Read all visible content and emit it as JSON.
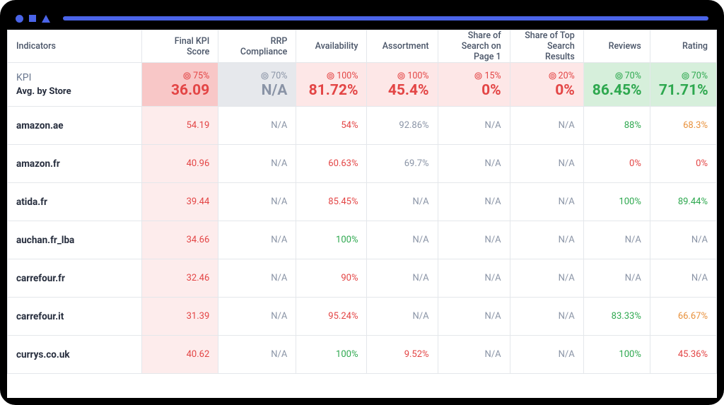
{
  "colors": {
    "red_bg_strong": "#f8c7c7",
    "red_bg_light": "#fde7e7",
    "grey_bg": "#e6e8ec",
    "green_bg": "#d6efdb",
    "text_red": "#e34545",
    "text_green": "#2ea84f",
    "text_grey": "#8a94a6",
    "text_orange": "#e8913c",
    "text_dark": "#262d3d",
    "border": "#e4e7eb",
    "accent_blue": "#4a64e8"
  },
  "columns": [
    {
      "key": "indicators",
      "label": "Indicators"
    },
    {
      "key": "final_kpi",
      "label": "Final KPI Score"
    },
    {
      "key": "rrp",
      "label": "RRP Compliance"
    },
    {
      "key": "availability",
      "label": "Availability"
    },
    {
      "key": "assortment",
      "label": "Assortment"
    },
    {
      "key": "sos",
      "label": "Share of Search on Page 1"
    },
    {
      "key": "sts",
      "label": "Share of Top Search Results"
    },
    {
      "key": "reviews",
      "label": "Reviews"
    },
    {
      "key": "rating",
      "label": "Rating"
    }
  ],
  "kpi_row": {
    "title": "KPI",
    "subtitle": "Avg. by Store",
    "cells": [
      {
        "target": "75%",
        "value": "36.09",
        "bg": "red_strong",
        "target_color": "red",
        "value_color": "red"
      },
      {
        "target": "70%",
        "value": "N/A",
        "bg": "grey",
        "target_color": "grey",
        "value_color": "grey"
      },
      {
        "target": "100%",
        "value": "81.72%",
        "bg": "red_light",
        "target_color": "red",
        "value_color": "red"
      },
      {
        "target": "100%",
        "value": "45.4%",
        "bg": "red_light",
        "target_color": "red",
        "value_color": "red"
      },
      {
        "target": "15%",
        "value": "0%",
        "bg": "red_light",
        "target_color": "red",
        "value_color": "red"
      },
      {
        "target": "20%",
        "value": "0%",
        "bg": "red_light",
        "target_color": "red",
        "value_color": "red"
      },
      {
        "target": "70%",
        "value": "86.45%",
        "bg": "green",
        "target_color": "green",
        "value_color": "green"
      },
      {
        "target": "70%",
        "value": "71.71%",
        "bg": "green",
        "target_color": "green",
        "value_color": "green"
      }
    ]
  },
  "rows": [
    {
      "store": "amazon.ae",
      "cells": [
        {
          "v": "54.19",
          "c": "red",
          "bg": "red_vlight"
        },
        {
          "v": "N/A",
          "c": "grey"
        },
        {
          "v": "54%",
          "c": "red"
        },
        {
          "v": "92.86%",
          "c": "grey"
        },
        {
          "v": "N/A",
          "c": "grey"
        },
        {
          "v": "N/A",
          "c": "grey"
        },
        {
          "v": "88%",
          "c": "green"
        },
        {
          "v": "68.3%",
          "c": "orange"
        }
      ]
    },
    {
      "store": "amazon.fr",
      "cells": [
        {
          "v": "40.96",
          "c": "red",
          "bg": "red_vlight"
        },
        {
          "v": "N/A",
          "c": "grey"
        },
        {
          "v": "60.63%",
          "c": "red"
        },
        {
          "v": "69.7%",
          "c": "grey"
        },
        {
          "v": "N/A",
          "c": "grey"
        },
        {
          "v": "N/A",
          "c": "grey"
        },
        {
          "v": "0%",
          "c": "red"
        },
        {
          "v": "0%",
          "c": "red"
        }
      ]
    },
    {
      "store": "atida.fr",
      "cells": [
        {
          "v": "39.44",
          "c": "red",
          "bg": "red_vlight"
        },
        {
          "v": "N/A",
          "c": "grey"
        },
        {
          "v": "85.45%",
          "c": "red"
        },
        {
          "v": "N/A",
          "c": "grey"
        },
        {
          "v": "N/A",
          "c": "grey"
        },
        {
          "v": "N/A",
          "c": "grey"
        },
        {
          "v": "100%",
          "c": "green"
        },
        {
          "v": "89.44%",
          "c": "green"
        }
      ]
    },
    {
      "store": "auchan.fr_lba",
      "cells": [
        {
          "v": "34.66",
          "c": "red",
          "bg": "red_vlight"
        },
        {
          "v": "N/A",
          "c": "grey"
        },
        {
          "v": "100%",
          "c": "green"
        },
        {
          "v": "N/A",
          "c": "grey"
        },
        {
          "v": "N/A",
          "c": "grey"
        },
        {
          "v": "N/A",
          "c": "grey"
        },
        {
          "v": "N/A",
          "c": "grey"
        },
        {
          "v": "N/A",
          "c": "grey"
        }
      ]
    },
    {
      "store": "carrefour.fr",
      "cells": [
        {
          "v": "32.46",
          "c": "red",
          "bg": "red_vlight"
        },
        {
          "v": "N/A",
          "c": "grey"
        },
        {
          "v": "90%",
          "c": "red"
        },
        {
          "v": "N/A",
          "c": "grey"
        },
        {
          "v": "N/A",
          "c": "grey"
        },
        {
          "v": "N/A",
          "c": "grey"
        },
        {
          "v": "N/A",
          "c": "grey"
        },
        {
          "v": "N/A",
          "c": "grey"
        }
      ]
    },
    {
      "store": "carrefour.it",
      "cells": [
        {
          "v": "31.39",
          "c": "red",
          "bg": "red_vlight"
        },
        {
          "v": "N/A",
          "c": "grey"
        },
        {
          "v": "95.24%",
          "c": "red"
        },
        {
          "v": "N/A",
          "c": "grey"
        },
        {
          "v": "N/A",
          "c": "grey"
        },
        {
          "v": "N/A",
          "c": "grey"
        },
        {
          "v": "83.33%",
          "c": "green"
        },
        {
          "v": "66.67%",
          "c": "orange"
        }
      ]
    },
    {
      "store": "currys.co.uk",
      "cells": [
        {
          "v": "40.62",
          "c": "red",
          "bg": "red_vlight"
        },
        {
          "v": "N/A",
          "c": "grey"
        },
        {
          "v": "100%",
          "c": "green"
        },
        {
          "v": "9.52%",
          "c": "red"
        },
        {
          "v": "N/A",
          "c": "grey"
        },
        {
          "v": "N/A",
          "c": "grey"
        },
        {
          "v": "100%",
          "c": "green"
        },
        {
          "v": "45.36%",
          "c": "red"
        }
      ]
    }
  ]
}
